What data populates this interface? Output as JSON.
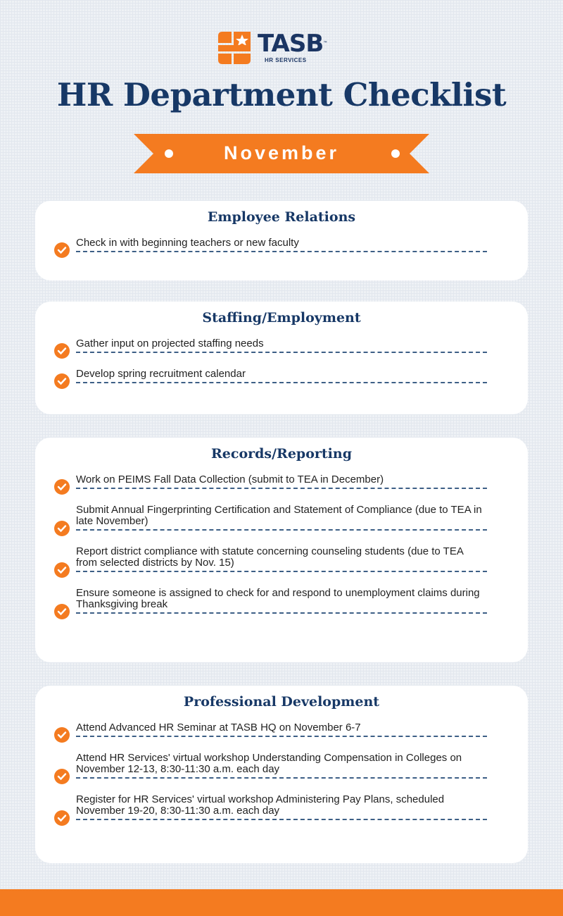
{
  "logo": {
    "name": "TASB",
    "tm": "™",
    "sub": "HR SERVICES"
  },
  "title": "HR Department Checklist",
  "month": "November",
  "colors": {
    "accent": "#f47b20",
    "navy": "#173866"
  },
  "sections": [
    {
      "title": "Employee Relations",
      "items": [
        "Check in with beginning teachers or new faculty"
      ]
    },
    {
      "title": "Staffing/Employment",
      "items": [
        "Gather input on projected staffing needs",
        "Develop spring recruitment calendar"
      ]
    },
    {
      "title": "Records/Reporting",
      "items": [
        "Work on PEIMS Fall Data Collection (submit to TEA in December)",
        "Submit Annual Fingerprinting Certification and Statement of Compliance (due to TEA in late November)",
        "Report district compliance with statute concerning counseling students (due to TEA from selected districts by Nov. 15)",
        "Ensure someone is assigned to check for and respond to unemployment claims during Thanksgiving break"
      ]
    },
    {
      "title": "Professional Development",
      "items": [
        "Attend Advanced HR Seminar at TASB HQ on November 6-7",
        "Attend HR Services' virtual workshop Understanding Compensation in Colleges on November 12-13, 8:30-11:30 a.m. each day",
        "Register for HR Services' virtual workshop Administering Pay Plans, scheduled November 19-20, 8:30-11:30 a.m. each day"
      ]
    }
  ]
}
